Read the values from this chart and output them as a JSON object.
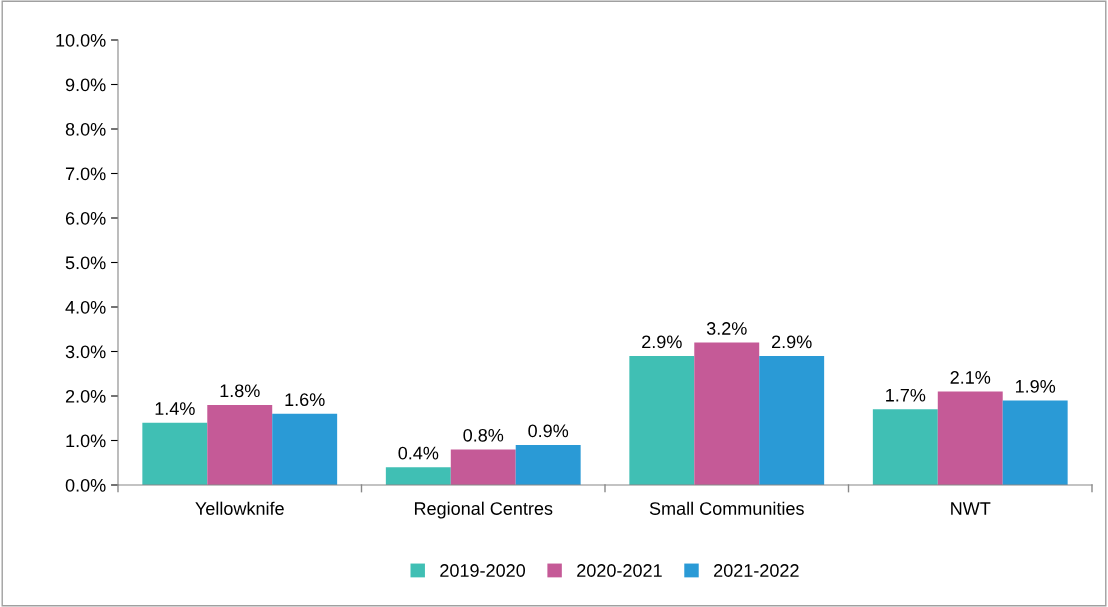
{
  "chart_data": {
    "type": "bar",
    "categories": [
      "Yellowknife",
      "Regional Centres",
      "Small Communities",
      "NWT"
    ],
    "series": [
      {
        "name": "2019-2020",
        "color": "#40bfb4",
        "values": [
          1.4,
          0.4,
          2.9,
          1.7
        ],
        "value_labels": [
          "1.4%",
          "0.4%",
          "2.9%",
          "1.7%"
        ]
      },
      {
        "name": "2020-2021",
        "color": "#c55a97",
        "values": [
          1.8,
          0.8,
          3.2,
          2.1
        ],
        "value_labels": [
          "1.8%",
          "0.8%",
          "3.2%",
          "2.1%"
        ]
      },
      {
        "name": "2021-2022",
        "color": "#2a9ad6",
        "values": [
          1.6,
          0.9,
          2.9,
          1.9
        ],
        "value_labels": [
          "1.6%",
          "0.9%",
          "2.9%",
          "1.9%"
        ]
      }
    ],
    "ylim": [
      0,
      10
    ],
    "yticks": [
      {
        "value": 0,
        "label": "0.0%"
      },
      {
        "value": 1,
        "label": "1.0%"
      },
      {
        "value": 2,
        "label": "2.0%"
      },
      {
        "value": 3,
        "label": "3.0%"
      },
      {
        "value": 4,
        "label": "4.0%"
      },
      {
        "value": 5,
        "label": "5.0%"
      },
      {
        "value": 6,
        "label": "6.0%"
      },
      {
        "value": 7,
        "label": "7.0%"
      },
      {
        "value": 8,
        "label": "8.0%"
      },
      {
        "value": 9,
        "label": "9.0%"
      },
      {
        "value": 10,
        "label": "10.0%"
      }
    ],
    "grid": false,
    "legend": "bottom"
  }
}
